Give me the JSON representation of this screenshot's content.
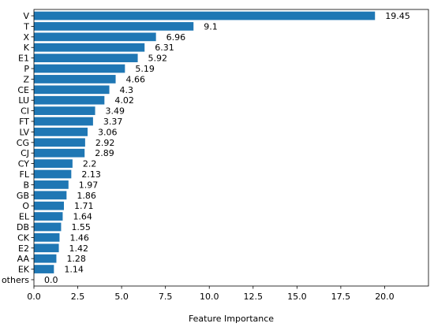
{
  "chart_data": {
    "type": "bar",
    "orientation": "horizontal",
    "categories": [
      "V",
      "T",
      "X",
      "K",
      "E1",
      "P",
      "Z",
      "CE",
      "LU",
      "CI",
      "FT",
      "LV",
      "CG",
      "CJ",
      "CY",
      "FL",
      "B",
      "GB",
      "O",
      "EL",
      "DB",
      "CK",
      "E2",
      "AA",
      "EK",
      "others"
    ],
    "values": [
      19.45,
      9.1,
      6.96,
      6.31,
      5.92,
      5.19,
      4.66,
      4.3,
      4.02,
      3.49,
      3.37,
      3.06,
      2.92,
      2.89,
      2.2,
      2.13,
      1.97,
      1.86,
      1.71,
      1.64,
      1.55,
      1.46,
      1.42,
      1.28,
      1.14,
      0.0
    ],
    "value_labels": [
      "19.45",
      "9.1",
      "6.96",
      "6.31",
      "5.92",
      "5.19",
      "4.66",
      "4.3",
      "4.02",
      "3.49",
      "3.37",
      "3.06",
      "2.92",
      "2.89",
      "2.2",
      "2.13",
      "1.97",
      "1.86",
      "1.71",
      "1.64",
      "1.55",
      "1.46",
      "1.42",
      "1.28",
      "1.14",
      "0.0"
    ],
    "xlabel": "Feature Importance",
    "ylabel": "",
    "title": "",
    "xlim": [
      0,
      22.5
    ],
    "xticks": [
      0.0,
      2.5,
      5.0,
      7.5,
      10.0,
      12.5,
      15.0,
      17.5,
      20.0
    ],
    "xtick_labels": [
      "0.0",
      "2.5",
      "5.0",
      "7.5",
      "10.0",
      "12.5",
      "15.0",
      "17.5",
      "20.0"
    ],
    "grid": false,
    "bar_color": "#1f77b4"
  }
}
